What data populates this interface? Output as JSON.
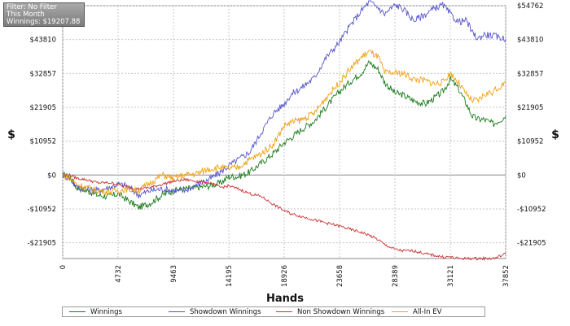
{
  "filter_panel": {
    "filter": "Filter: No Filter",
    "period": "This Month",
    "winnings": "Winnings: $19207.88"
  },
  "chart_data": {
    "type": "line",
    "xlabel": "Hands",
    "ylabel": "$",
    "xlim": [
      0,
      37852
    ],
    "ylim": [
      -27000,
      54762
    ],
    "x_ticks": [
      0,
      4732,
      9463,
      14195,
      18926,
      23658,
      28389,
      33121,
      37852
    ],
    "y_ticks": [
      -21905,
      -10952,
      0,
      10952,
      21905,
      32857,
      43810,
      54762
    ],
    "y_tick_labels": [
      "-$21905",
      "-$10952",
      "$0",
      "$10952",
      "$21905",
      "$32857",
      "$43810",
      "$54762"
    ],
    "grid": true,
    "legend_position": "bottom",
    "series": [
      {
        "name": "Winnings",
        "color": "#1a7a1a",
        "x": [
          0,
          600,
          1200,
          2000,
          3000,
          4000,
          4732,
          5500,
          6500,
          7500,
          8500,
          9463,
          10500,
          11500,
          12500,
          13500,
          14195,
          15000,
          16000,
          17000,
          18000,
          18926,
          19500,
          20500,
          21500,
          22500,
          23658,
          24500,
          25500,
          26200,
          27000,
          27500,
          28389,
          29000,
          30000,
          31000,
          31800,
          32500,
          33121,
          33800,
          34500,
          35000,
          35500,
          36000,
          36800,
          37852
        ],
        "y": [
          0,
          -500,
          -4000,
          -5000,
          -6500,
          -7000,
          -6000,
          -8000,
          -10500,
          -9000,
          -6500,
          -5000,
          -4500,
          -4000,
          -3500,
          -2500,
          -500,
          -500,
          1000,
          4000,
          7000,
          10500,
          12000,
          15000,
          17500,
          22000,
          27000,
          30000,
          33000,
          36500,
          34000,
          30000,
          26500,
          26000,
          24000,
          23000,
          25000,
          27000,
          31000,
          28000,
          23000,
          19000,
          18000,
          18000,
          16500,
          19000
        ]
      },
      {
        "name": "Showdown Winnings",
        "color": "#5555cc",
        "x": [
          0,
          600,
          1200,
          2000,
          3000,
          4000,
          4732,
          5500,
          6500,
          7500,
          8500,
          9463,
          10500,
          11500,
          12500,
          13500,
          14195,
          15000,
          16000,
          17000,
          18000,
          18926,
          19500,
          20500,
          21500,
          22500,
          23658,
          24500,
          25500,
          26200,
          27000,
          27500,
          28389,
          29000,
          30000,
          31000,
          31800,
          32500,
          33121,
          33800,
          34500,
          35000,
          35500,
          36000,
          36800,
          37852
        ],
        "y": [
          0,
          -1000,
          -4000,
          -4500,
          -5000,
          -4000,
          -3000,
          -3500,
          -6500,
          -5000,
          -4500,
          -5000,
          -5000,
          -3000,
          -1500,
          1000,
          3000,
          5000,
          7500,
          14000,
          20000,
          23000,
          26000,
          28500,
          31500,
          38000,
          43000,
          48000,
          53000,
          56000,
          54000,
          52000,
          55000,
          54000,
          50000,
          52000,
          54000,
          55000,
          52000,
          49500,
          50000,
          46000,
          44000,
          45500,
          45000,
          44000
        ]
      },
      {
        "name": "Non Showdown Winnings",
        "color": "#cc3333",
        "x": [
          0,
          600,
          1200,
          2000,
          3000,
          4000,
          4732,
          5500,
          6500,
          7500,
          8500,
          9463,
          10500,
          11500,
          12500,
          13500,
          14195,
          15000,
          16000,
          17000,
          18000,
          18926,
          19500,
          20500,
          21500,
          22500,
          23658,
          24500,
          25500,
          26200,
          27000,
          27500,
          28389,
          29000,
          30000,
          31000,
          31800,
          32500,
          33121,
          33800,
          34500,
          35000,
          35500,
          36000,
          36800,
          37852
        ],
        "y": [
          0,
          0,
          -1000,
          -1500,
          -2500,
          -2500,
          -3000,
          -4000,
          -4500,
          -4000,
          -3000,
          -2000,
          -1500,
          -2000,
          -2500,
          -4000,
          -3500,
          -4500,
          -6000,
          -7000,
          -9500,
          -11500,
          -12500,
          -13500,
          -14500,
          -15500,
          -16500,
          -17500,
          -18500,
          -19500,
          -21000,
          -22500,
          -24000,
          -24500,
          -24500,
          -25500,
          -26000,
          -26500,
          -26500,
          -27000,
          -27000,
          -27000,
          -27000,
          -27000,
          -27000,
          -25500
        ]
      },
      {
        "name": "All-In EV",
        "color": "#f0a010",
        "x": [
          0,
          600,
          1200,
          2000,
          3000,
          4000,
          4732,
          5500,
          6500,
          7500,
          8500,
          9463,
          10500,
          11500,
          12500,
          13500,
          14195,
          15000,
          16000,
          17000,
          18000,
          18926,
          19500,
          20500,
          21500,
          22500,
          23658,
          24500,
          25500,
          26200,
          27000,
          27500,
          28389,
          29000,
          30000,
          31000,
          31800,
          32500,
          33121,
          33800,
          34500,
          35000,
          35500,
          36000,
          36800,
          37852
        ],
        "y": [
          0,
          -1000,
          -3000,
          -4000,
          -5000,
          -5500,
          -5000,
          -4500,
          -5000,
          -2500,
          0,
          -1000,
          0,
          500,
          2000,
          2500,
          2000,
          2500,
          5000,
          7000,
          10000,
          16000,
          17000,
          18000,
          20000,
          25000,
          30000,
          34000,
          38000,
          40000,
          38000,
          33000,
          33000,
          33000,
          31000,
          30500,
          29500,
          30000,
          33000,
          30000,
          26000,
          24000,
          24000,
          26000,
          27000,
          30000
        ]
      }
    ]
  }
}
